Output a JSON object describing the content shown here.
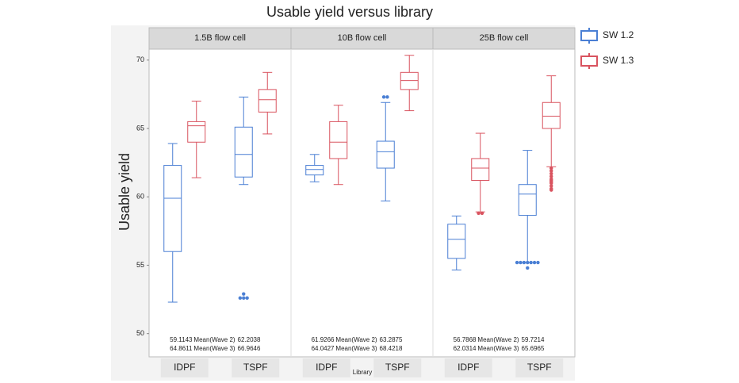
{
  "chart_data": {
    "type": "boxplot",
    "title": "Usable yield versus library",
    "y_label": "Usable yield",
    "x_label": "Library",
    "categories": [
      "IDPF",
      "TSPF"
    ],
    "series": [
      {
        "name": "SW 1.2",
        "color": "#4a7fd4"
      },
      {
        "name": "SW 1.3",
        "color": "#d9535f"
      }
    ],
    "ylim": [
      48.3,
      70.8
    ],
    "yticks": [
      50,
      55,
      60,
      65,
      70
    ],
    "panels": [
      {
        "title": "1.5B flow cell",
        "boxes": [
          [
            {
              "min": 52.3,
              "q1": 56.0,
              "median": 59.9,
              "q3": 62.3,
              "max": 63.9,
              "outliers": []
            },
            {
              "min": 61.4,
              "q1": 64.0,
              "median": 65.2,
              "q3": 65.5,
              "max": 67.0,
              "outliers": []
            }
          ],
          [
            {
              "min": 60.9,
              "q1": 61.45,
              "median": 63.1,
              "q3": 65.1,
              "max": 67.3,
              "outliers": [
                52.9,
                52.6,
                52.6,
                52.6
              ]
            },
            {
              "min": 64.6,
              "q1": 66.2,
              "median": 67.1,
              "q3": 67.85,
              "max": 69.1,
              "outliers": []
            }
          ]
        ],
        "means": [
          {
            "label": "Mean(Wave 2)",
            "values": [
              59.1143,
              62.2038
            ]
          },
          {
            "label": "Mean(Wave 3)",
            "values": [
              64.8611,
              66.9646
            ]
          }
        ]
      },
      {
        "title": "10B flow cell",
        "boxes": [
          [
            {
              "min": 61.1,
              "q1": 61.6,
              "median": 62.0,
              "q3": 62.3,
              "max": 63.1,
              "outliers": []
            },
            {
              "min": 60.9,
              "q1": 62.8,
              "median": 64.0,
              "q3": 65.5,
              "max": 66.7,
              "outliers": []
            }
          ],
          [
            {
              "min": 59.7,
              "q1": 62.1,
              "median": 63.3,
              "q3": 64.07,
              "max": 66.9,
              "outliers": [
                67.3,
                67.3
              ]
            },
            {
              "min": 66.3,
              "q1": 67.85,
              "median": 68.5,
              "q3": 69.1,
              "max": 70.35,
              "outliers": []
            }
          ]
        ],
        "means": [
          {
            "label": "Mean(Wave 2)",
            "values": [
              61.9266,
              63.2875
            ]
          },
          {
            "label": "Mean(Wave 3)",
            "values": [
              64.0427,
              68.4218
            ]
          }
        ]
      },
      {
        "title": "25B flow cell",
        "boxes": [
          [
            {
              "min": 54.65,
              "q1": 55.5,
              "median": 56.9,
              "q3": 58.0,
              "max": 58.6,
              "outliers": []
            },
            {
              "min": 58.9,
              "q1": 61.2,
              "median": 62.1,
              "q3": 62.8,
              "max": 64.65,
              "outliers": [
                58.8,
                58.8
              ]
            }
          ],
          [
            {
              "min": 55.2,
              "q1": 58.65,
              "median": 60.2,
              "q3": 60.9,
              "max": 63.4,
              "outliers": [
                55.2,
                55.2,
                55.2,
                55.2,
                55.2,
                55.2,
                55.2,
                54.8
              ]
            },
            {
              "min": 62.2,
              "q1": 65.0,
              "median": 65.9,
              "q3": 66.9,
              "max": 68.85,
              "outliers": [
                62.1,
                61.9,
                61.7,
                61.5,
                61.3,
                61.2,
                61.1,
                61.0,
                60.8,
                60.6,
                60.5
              ]
            }
          ]
        ],
        "means": [
          {
            "label": "Mean(Wave 2)",
            "values": [
              56.7868,
              59.7214
            ]
          },
          {
            "label": "Mean(Wave 3)",
            "values": [
              62.0314,
              65.6965
            ]
          }
        ]
      }
    ]
  }
}
